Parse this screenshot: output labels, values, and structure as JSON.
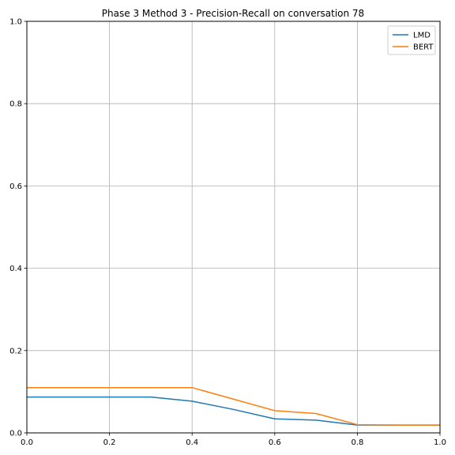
{
  "chart_data": {
    "type": "line",
    "title": "Phase 3 Method 3 - Precision-Recall on conversation 78",
    "xlabel": "",
    "ylabel": "",
    "xlim": [
      0.0,
      1.0
    ],
    "ylim": [
      0.0,
      1.0
    ],
    "x_ticks": [
      "0.0",
      "0.2",
      "0.4",
      "0.6",
      "0.8",
      "1.0"
    ],
    "y_ticks": [
      "0.0",
      "0.2",
      "0.4",
      "0.6",
      "0.8",
      "1.0"
    ],
    "grid": true,
    "legend_position": "top-right",
    "x": [
      0.0,
      0.1,
      0.2,
      0.3,
      0.4,
      0.5,
      0.6,
      0.7,
      0.8,
      0.9,
      1.0
    ],
    "series": [
      {
        "name": "LMD",
        "color": "#1f77b4",
        "values": [
          0.087,
          0.087,
          0.087,
          0.087,
          0.077,
          0.057,
          0.034,
          0.031,
          0.019,
          0.019,
          0.019
        ]
      },
      {
        "name": "BERT",
        "color": "#ff7f0e",
        "values": [
          0.11,
          0.11,
          0.11,
          0.11,
          0.11,
          0.082,
          0.054,
          0.047,
          0.02,
          0.019,
          0.019
        ]
      }
    ]
  }
}
